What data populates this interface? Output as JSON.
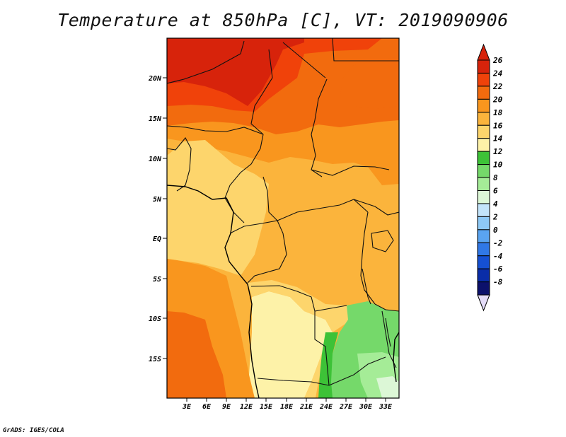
{
  "title": "Temperature at 850hPa [C], VT: 2019090906",
  "credit": "GrADS: IGES/COLA",
  "map": {
    "lat_labels": [
      "20N",
      "15N",
      "10N",
      "5N",
      "EQ",
      "5S",
      "10S",
      "15S"
    ],
    "lon_labels": [
      "3E",
      "6E",
      "9E",
      "12E",
      "15E",
      "18E",
      "21E",
      "24E",
      "27E",
      "30E",
      "33E"
    ]
  },
  "colorbar": {
    "labels": [
      "26",
      "24",
      "22",
      "20",
      "18",
      "16",
      "14",
      "12",
      "10",
      "8",
      "6",
      "4",
      "2",
      "0",
      "-2",
      "-4",
      "-6",
      "-8"
    ],
    "colors": [
      "#d7230b",
      "#f0420a",
      "#f26b0e",
      "#f9961e",
      "#fbb43c",
      "#fdd56c",
      "#fdf2a8",
      "#3dc237",
      "#75d96a",
      "#a5ec97",
      "#dcf7d6",
      "#c3e4fa",
      "#8ec9f6",
      "#5aa4f1",
      "#3078e6",
      "#1550d2",
      "#0a2da8",
      "#0c116b"
    ],
    "end_low": "#e4dcf8"
  },
  "colors": {
    "frame": "#000000",
    "border": "#111111"
  }
}
